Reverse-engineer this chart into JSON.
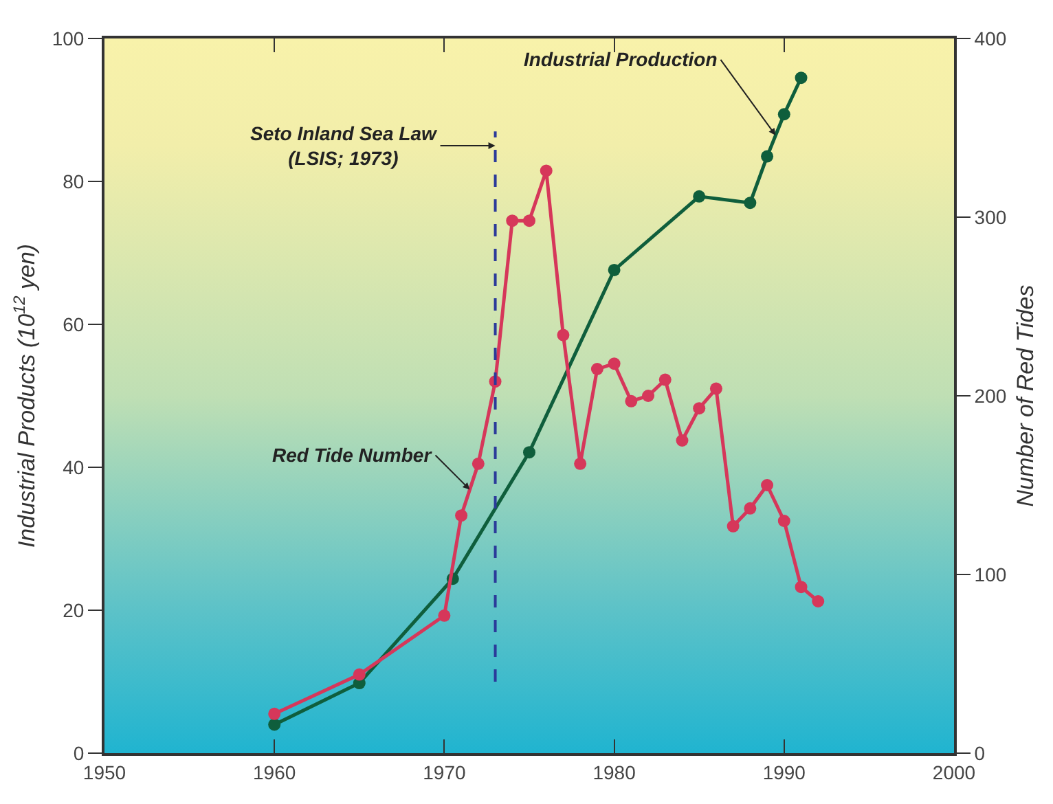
{
  "chart_data": {
    "type": "line",
    "xlabel": null,
    "ylabel": "Industrial Products (10$^{12}$ yen)",
    "y2label": "Number of Red Tides",
    "xlim": [
      1950,
      2000
    ],
    "xticks": [
      1950,
      1960,
      1970,
      1980,
      1990,
      2000
    ],
    "ylim": [
      0,
      100
    ],
    "yticks": [
      0,
      20,
      40,
      60,
      80,
      100
    ],
    "y2lim": [
      0,
      400
    ],
    "y2ticks": [
      0,
      100,
      200,
      300,
      400
    ],
    "marker": "circle",
    "line_style": "solid",
    "legend": false,
    "grid": false,
    "series": [
      {
        "name": "Industrial Production",
        "color": "#0f5e3c",
        "x": [
          1960,
          1965,
          1970.5,
          1975,
          1980,
          1985,
          1988,
          1989,
          1990,
          1991
        ],
        "values": [
          4.0,
          9.8,
          24.4,
          42.1,
          67.6,
          77.9,
          77.0,
          83.5,
          89.4,
          94.5
        ]
      },
      {
        "name": "Red Tide Number",
        "color": "#d6375a",
        "axis": "y2",
        "x": [
          1960,
          1965,
          1970,
          1971,
          1972,
          1973,
          1974,
          1975,
          1976,
          1977,
          1978,
          1979,
          1980,
          1981,
          1982,
          1983,
          1984,
          1985,
          1986,
          1987,
          1988,
          1989,
          1990,
          1991,
          1992
        ],
        "values": [
          22,
          44,
          77,
          133,
          162,
          208,
          298,
          298,
          326,
          234,
          162,
          215,
          218,
          197,
          200,
          209,
          175,
          193,
          204,
          127,
          137,
          150,
          130,
          93,
          85
        ]
      }
    ],
    "ref_lines": [
      {
        "axis": "x",
        "value": 1973,
        "label": "Seto Inland Sea Law\n(LSIS; 1973)",
        "color": "#2b3a9a",
        "line_style": "dashed"
      }
    ]
  }
}
